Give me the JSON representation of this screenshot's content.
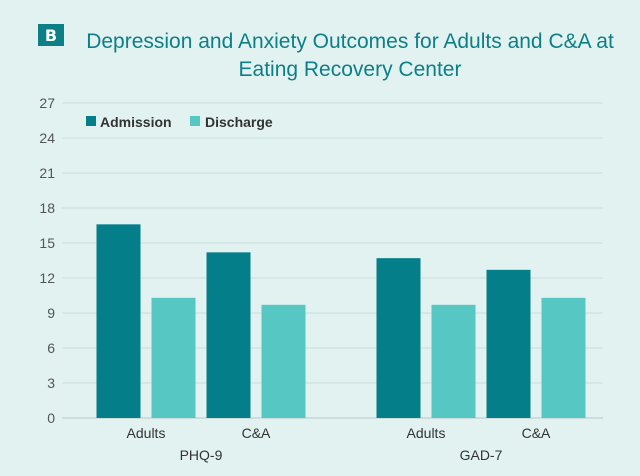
{
  "panel_label": "B",
  "colors": {
    "admission": "#047f89",
    "discharge": "#57c7c3",
    "grid": "#c9dedc",
    "title": "#0d7f87"
  },
  "chart_data": {
    "type": "bar",
    "title_lines": [
      "Depression and Anxiety Outcomes for Adults and C&A at",
      "Eating Recovery Center"
    ],
    "groups": [
      {
        "name": "PHQ-9",
        "categories": [
          "Adults",
          "C&A"
        ]
      },
      {
        "name": "GAD-7",
        "categories": [
          "Adults",
          "C&A"
        ]
      }
    ],
    "series": [
      {
        "name": "Admission",
        "values": [
          16.6,
          14.2,
          13.7,
          12.7
        ]
      },
      {
        "name": "Discharge",
        "values": [
          10.3,
          9.7,
          9.7,
          10.3
        ]
      }
    ],
    "yticks": [
      0,
      3,
      6,
      9,
      12,
      15,
      18,
      21,
      24,
      27
    ],
    "ylim": [
      0,
      27
    ],
    "grid": true,
    "legend": "top-left"
  }
}
